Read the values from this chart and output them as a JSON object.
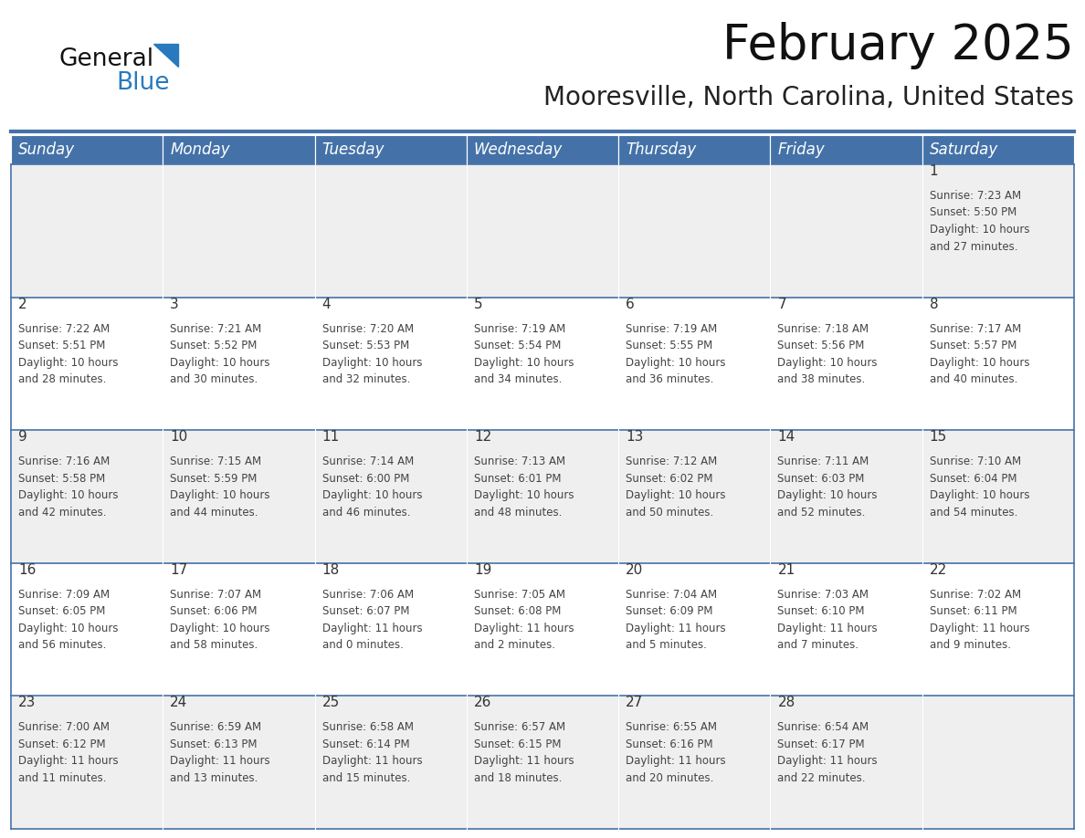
{
  "title": "February 2025",
  "subtitle": "Mooresville, North Carolina, United States",
  "days_of_week": [
    "Sunday",
    "Monday",
    "Tuesday",
    "Wednesday",
    "Thursday",
    "Friday",
    "Saturday"
  ],
  "header_bg": "#4472a8",
  "header_text": "#ffffff",
  "row_bg_odd": "#efefef",
  "row_bg_even": "#ffffff",
  "cell_border_color": "#4472a8",
  "day_number_color": "#333333",
  "cell_text_color": "#444444",
  "title_color": "#111111",
  "subtitle_color": "#222222",
  "logo_general_color": "#111111",
  "logo_blue_color": "#2879be",
  "calendar_data": [
    [
      {
        "day": null,
        "info": null
      },
      {
        "day": null,
        "info": null
      },
      {
        "day": null,
        "info": null
      },
      {
        "day": null,
        "info": null
      },
      {
        "day": null,
        "info": null
      },
      {
        "day": null,
        "info": null
      },
      {
        "day": 1,
        "info": "Sunrise: 7:23 AM\nSunset: 5:50 PM\nDaylight: 10 hours\nand 27 minutes."
      }
    ],
    [
      {
        "day": 2,
        "info": "Sunrise: 7:22 AM\nSunset: 5:51 PM\nDaylight: 10 hours\nand 28 minutes."
      },
      {
        "day": 3,
        "info": "Sunrise: 7:21 AM\nSunset: 5:52 PM\nDaylight: 10 hours\nand 30 minutes."
      },
      {
        "day": 4,
        "info": "Sunrise: 7:20 AM\nSunset: 5:53 PM\nDaylight: 10 hours\nand 32 minutes."
      },
      {
        "day": 5,
        "info": "Sunrise: 7:19 AM\nSunset: 5:54 PM\nDaylight: 10 hours\nand 34 minutes."
      },
      {
        "day": 6,
        "info": "Sunrise: 7:19 AM\nSunset: 5:55 PM\nDaylight: 10 hours\nand 36 minutes."
      },
      {
        "day": 7,
        "info": "Sunrise: 7:18 AM\nSunset: 5:56 PM\nDaylight: 10 hours\nand 38 minutes."
      },
      {
        "day": 8,
        "info": "Sunrise: 7:17 AM\nSunset: 5:57 PM\nDaylight: 10 hours\nand 40 minutes."
      }
    ],
    [
      {
        "day": 9,
        "info": "Sunrise: 7:16 AM\nSunset: 5:58 PM\nDaylight: 10 hours\nand 42 minutes."
      },
      {
        "day": 10,
        "info": "Sunrise: 7:15 AM\nSunset: 5:59 PM\nDaylight: 10 hours\nand 44 minutes."
      },
      {
        "day": 11,
        "info": "Sunrise: 7:14 AM\nSunset: 6:00 PM\nDaylight: 10 hours\nand 46 minutes."
      },
      {
        "day": 12,
        "info": "Sunrise: 7:13 AM\nSunset: 6:01 PM\nDaylight: 10 hours\nand 48 minutes."
      },
      {
        "day": 13,
        "info": "Sunrise: 7:12 AM\nSunset: 6:02 PM\nDaylight: 10 hours\nand 50 minutes."
      },
      {
        "day": 14,
        "info": "Sunrise: 7:11 AM\nSunset: 6:03 PM\nDaylight: 10 hours\nand 52 minutes."
      },
      {
        "day": 15,
        "info": "Sunrise: 7:10 AM\nSunset: 6:04 PM\nDaylight: 10 hours\nand 54 minutes."
      }
    ],
    [
      {
        "day": 16,
        "info": "Sunrise: 7:09 AM\nSunset: 6:05 PM\nDaylight: 10 hours\nand 56 minutes."
      },
      {
        "day": 17,
        "info": "Sunrise: 7:07 AM\nSunset: 6:06 PM\nDaylight: 10 hours\nand 58 minutes."
      },
      {
        "day": 18,
        "info": "Sunrise: 7:06 AM\nSunset: 6:07 PM\nDaylight: 11 hours\nand 0 minutes."
      },
      {
        "day": 19,
        "info": "Sunrise: 7:05 AM\nSunset: 6:08 PM\nDaylight: 11 hours\nand 2 minutes."
      },
      {
        "day": 20,
        "info": "Sunrise: 7:04 AM\nSunset: 6:09 PM\nDaylight: 11 hours\nand 5 minutes."
      },
      {
        "day": 21,
        "info": "Sunrise: 7:03 AM\nSunset: 6:10 PM\nDaylight: 11 hours\nand 7 minutes."
      },
      {
        "day": 22,
        "info": "Sunrise: 7:02 AM\nSunset: 6:11 PM\nDaylight: 11 hours\nand 9 minutes."
      }
    ],
    [
      {
        "day": 23,
        "info": "Sunrise: 7:00 AM\nSunset: 6:12 PM\nDaylight: 11 hours\nand 11 minutes."
      },
      {
        "day": 24,
        "info": "Sunrise: 6:59 AM\nSunset: 6:13 PM\nDaylight: 11 hours\nand 13 minutes."
      },
      {
        "day": 25,
        "info": "Sunrise: 6:58 AM\nSunset: 6:14 PM\nDaylight: 11 hours\nand 15 minutes."
      },
      {
        "day": 26,
        "info": "Sunrise: 6:57 AM\nSunset: 6:15 PM\nDaylight: 11 hours\nand 18 minutes."
      },
      {
        "day": 27,
        "info": "Sunrise: 6:55 AM\nSunset: 6:16 PM\nDaylight: 11 hours\nand 20 minutes."
      },
      {
        "day": 28,
        "info": "Sunrise: 6:54 AM\nSunset: 6:17 PM\nDaylight: 11 hours\nand 22 minutes."
      },
      {
        "day": null,
        "info": null
      }
    ]
  ],
  "fig_width": 11.88,
  "fig_height": 9.18
}
